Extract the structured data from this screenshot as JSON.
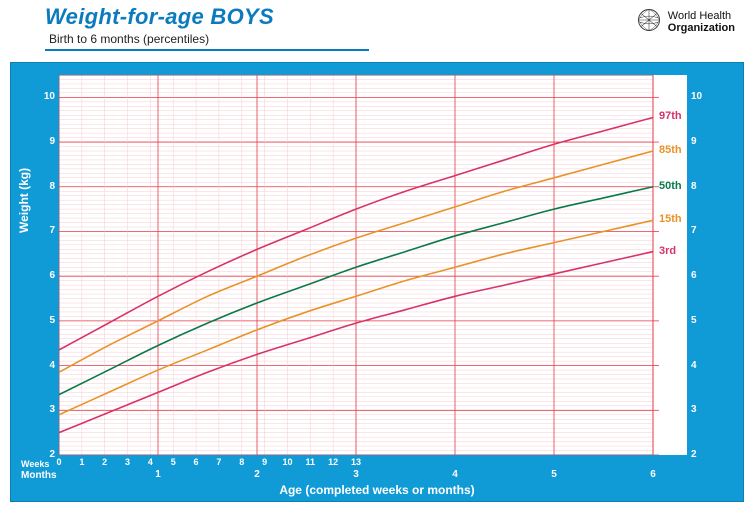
{
  "header": {
    "title": "Weight-for-age BOYS",
    "subtitle": "Birth to 6 months (percentiles)",
    "org1": "World Health",
    "org2": "Organization"
  },
  "chart": {
    "type": "line",
    "ylabel": "Weight (kg)",
    "xlabel": "Age (completed weeks or months)",
    "weeks_label": "Weeks",
    "months_label": "Months",
    "ylim": [
      2,
      10.5
    ],
    "xlim_months": [
      0,
      6
    ],
    "y_ticks": [
      2,
      3,
      4,
      5,
      6,
      7,
      8,
      9,
      10
    ],
    "week_ticks": [
      0,
      1,
      2,
      3,
      4,
      5,
      6,
      7,
      8,
      9,
      10,
      11,
      12,
      13
    ],
    "month_ticks": [
      1,
      2,
      3,
      4,
      5,
      6
    ],
    "colors": {
      "background": "#ffffff",
      "frame": "#119bd6",
      "grid_major": "#e63946",
      "grid_minor": "#f2c2c6",
      "axis_text": "#ffffff",
      "p97": "#d6336c",
      "p85": "#e8932a",
      "p50": "#0a7a48",
      "p15": "#e8932a",
      "p3": "#d6336c"
    },
    "line_width": 1.6,
    "label_fontsize": 12,
    "tick_fontsize": 10,
    "series": [
      {
        "name": "97th",
        "label": "97th",
        "color": "#d6336c",
        "points": [
          [
            0,
            4.35
          ],
          [
            0.5,
            4.95
          ],
          [
            1,
            5.55
          ],
          [
            1.5,
            6.1
          ],
          [
            2,
            6.6
          ],
          [
            2.5,
            7.05
          ],
          [
            3,
            7.5
          ],
          [
            3.5,
            7.9
          ],
          [
            4,
            8.25
          ],
          [
            4.5,
            8.6
          ],
          [
            5,
            8.95
          ],
          [
            5.5,
            9.25
          ],
          [
            6,
            9.55
          ]
        ]
      },
      {
        "name": "85th",
        "label": "85th",
        "color": "#e8932a",
        "points": [
          [
            0,
            3.85
          ],
          [
            0.5,
            4.45
          ],
          [
            1,
            5.0
          ],
          [
            1.5,
            5.55
          ],
          [
            2,
            6.0
          ],
          [
            2.5,
            6.45
          ],
          [
            3,
            6.85
          ],
          [
            3.5,
            7.2
          ],
          [
            4,
            7.55
          ],
          [
            4.5,
            7.9
          ],
          [
            5,
            8.2
          ],
          [
            5.5,
            8.5
          ],
          [
            6,
            8.8
          ]
        ]
      },
      {
        "name": "50th",
        "label": "50th",
        "color": "#0a7a48",
        "points": [
          [
            0,
            3.35
          ],
          [
            0.5,
            3.9
          ],
          [
            1,
            4.45
          ],
          [
            1.5,
            4.95
          ],
          [
            2,
            5.4
          ],
          [
            2.5,
            5.8
          ],
          [
            3,
            6.2
          ],
          [
            3.5,
            6.55
          ],
          [
            4,
            6.9
          ],
          [
            4.5,
            7.2
          ],
          [
            5,
            7.5
          ],
          [
            5.5,
            7.75
          ],
          [
            6,
            8.0
          ]
        ]
      },
      {
        "name": "15th",
        "label": "15th",
        "color": "#e8932a",
        "points": [
          [
            0,
            2.9
          ],
          [
            0.5,
            3.4
          ],
          [
            1,
            3.9
          ],
          [
            1.5,
            4.35
          ],
          [
            2,
            4.8
          ],
          [
            2.5,
            5.2
          ],
          [
            3,
            5.55
          ],
          [
            3.5,
            5.9
          ],
          [
            4,
            6.2
          ],
          [
            4.5,
            6.5
          ],
          [
            5,
            6.75
          ],
          [
            5.5,
            7.0
          ],
          [
            6,
            7.25
          ]
        ]
      },
      {
        "name": "3rd",
        "label": "3rd",
        "color": "#d6336c",
        "points": [
          [
            0,
            2.5
          ],
          [
            0.5,
            2.95
          ],
          [
            1,
            3.4
          ],
          [
            1.5,
            3.85
          ],
          [
            2,
            4.25
          ],
          [
            2.5,
            4.6
          ],
          [
            3,
            4.95
          ],
          [
            3.5,
            5.25
          ],
          [
            4,
            5.55
          ],
          [
            4.5,
            5.8
          ],
          [
            5,
            6.05
          ],
          [
            5.5,
            6.3
          ],
          [
            6,
            6.55
          ]
        ]
      }
    ]
  }
}
